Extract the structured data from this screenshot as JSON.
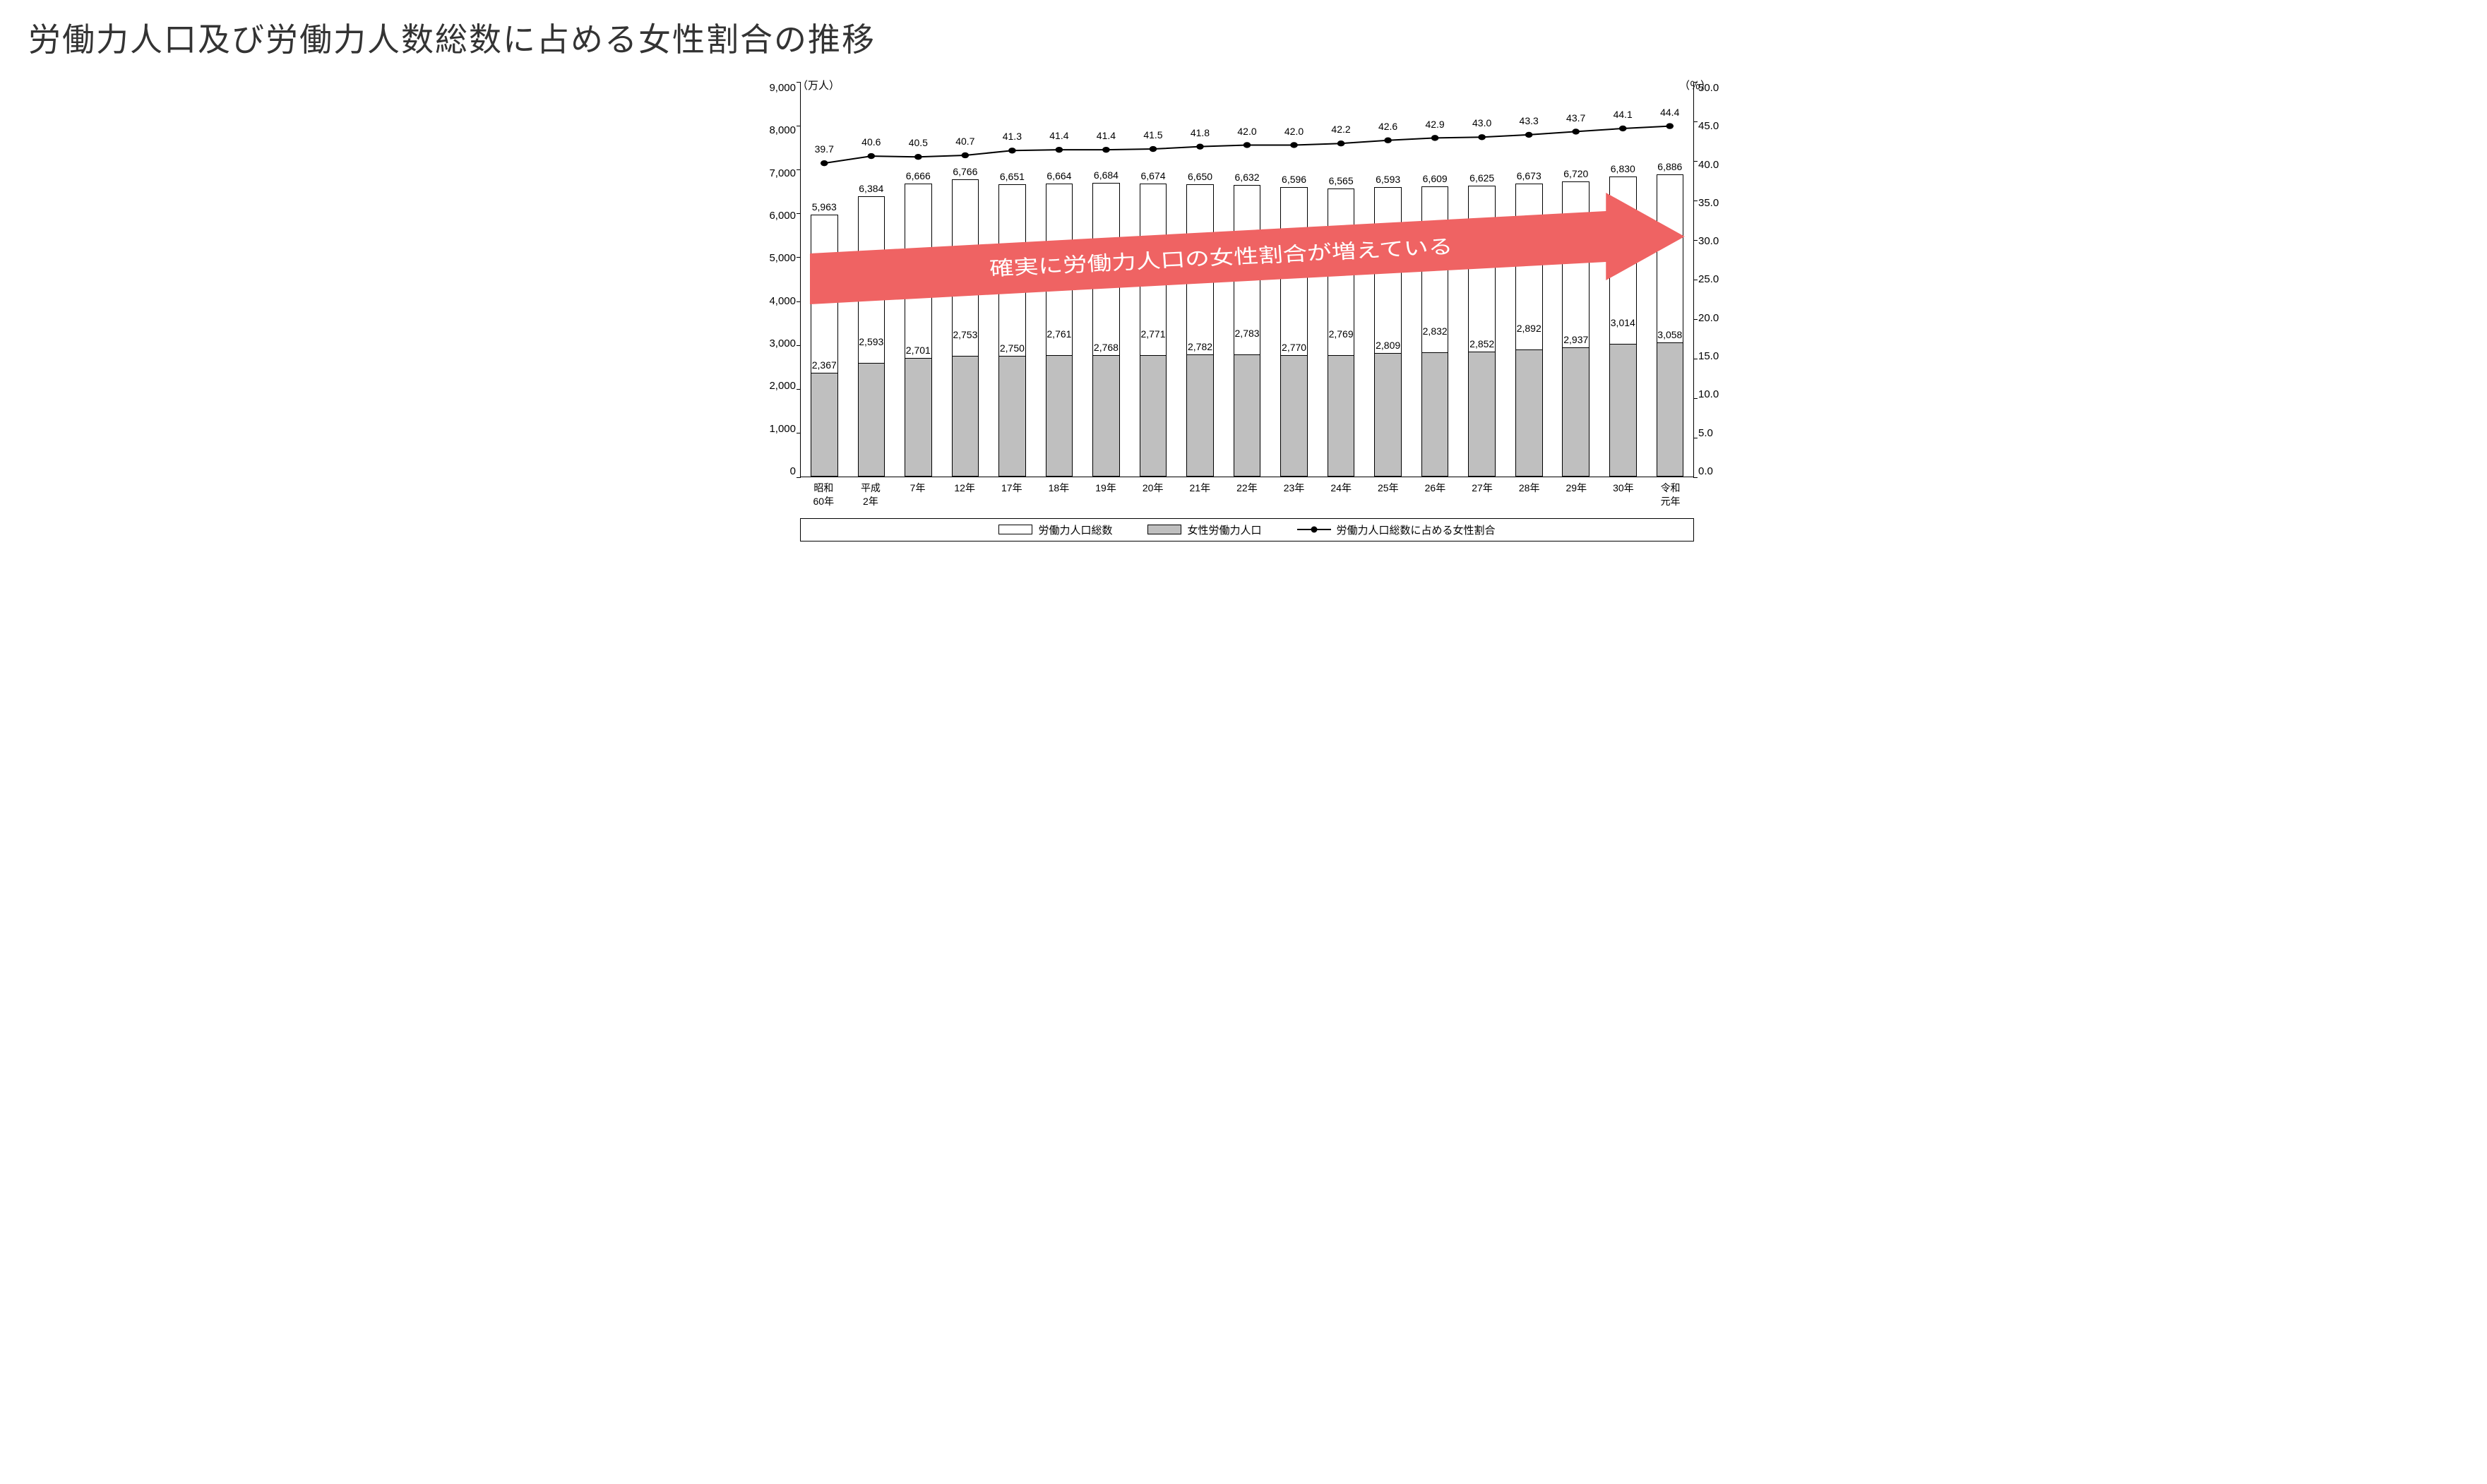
{
  "title": "労働力人口及び労働力人数総数に占める女性割合の推移",
  "units": {
    "left": "（万人）",
    "right": "（％）"
  },
  "legend": {
    "total": "労働力人口総数",
    "female": "女性労働力人口",
    "ratio": "労働力人口総数に占める女性割合"
  },
  "arrow": {
    "text": "確実に労働力人口の女性割合が増えている",
    "fill": "#ef6363",
    "text_color": "#ffffff"
  },
  "chart": {
    "type": "bar+line",
    "y_left": {
      "min": 0,
      "max": 9000,
      "step": 1000
    },
    "y_right": {
      "min": 0,
      "max": 50,
      "step": 5
    },
    "colors": {
      "total_fill": "#ffffff",
      "total_border": "#000000",
      "female_fill": "#bfbfbf",
      "female_border": "#000000",
      "line": "#000000",
      "marker": "#000000",
      "background": "#ffffff"
    },
    "bar_width_pct": 58,
    "font_size_labels": 14,
    "categories": [
      "昭和\n60年",
      "平成\n2年",
      "7年",
      "12年",
      "17年",
      "18年",
      "19年",
      "20年",
      "21年",
      "22年",
      "23年",
      "24年",
      "25年",
      "26年",
      "27年",
      "28年",
      "29年",
      "30年",
      "令和\n元年"
    ],
    "totals": [
      5963,
      6384,
      6666,
      6766,
      6651,
      6664,
      6684,
      6674,
      6650,
      6632,
      6596,
      6565,
      6593,
      6609,
      6625,
      6673,
      6720,
      6830,
      6886
    ],
    "females": [
      2367,
      2593,
      2701,
      2753,
      2750,
      2761,
      2768,
      2771,
      2782,
      2783,
      2770,
      2769,
      2809,
      2832,
      2852,
      2892,
      2937,
      3014,
      3058
    ],
    "ratios": [
      39.7,
      40.6,
      40.5,
      40.7,
      41.3,
      41.4,
      41.4,
      41.5,
      41.8,
      42.0,
      42.0,
      42.2,
      42.6,
      42.9,
      43.0,
      43.3,
      43.7,
      44.1,
      44.4
    ]
  }
}
